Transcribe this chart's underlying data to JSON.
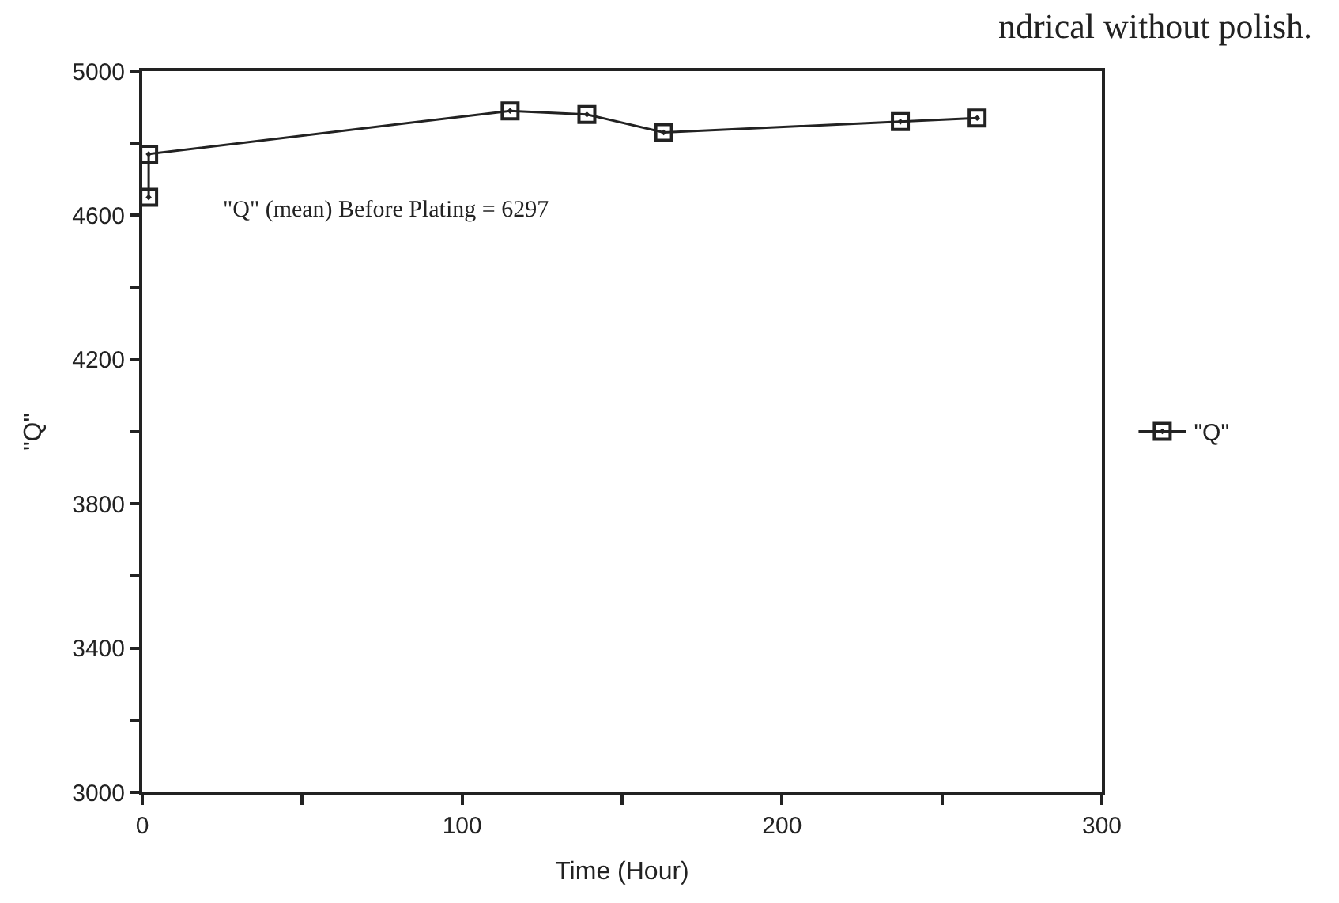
{
  "chart_data": {
    "type": "line",
    "title": "ndrical without polish.",
    "xlabel": "Time (Hour)",
    "ylabel": "\"Q\"",
    "x": [
      2,
      2,
      115,
      139,
      163,
      237,
      261
    ],
    "series": [
      {
        "name": "\"Q\"",
        "color": "#222222",
        "values": [
          4650,
          4770,
          4890,
          4880,
          4830,
          4860,
          4870
        ]
      }
    ],
    "annotations": [
      "\"Q\" (mean) Before Plating = 6297"
    ],
    "xlim": [
      0,
      300
    ],
    "xticks": [
      0,
      {
        "value": 50,
        "label": null
      },
      100,
      {
        "value": 150,
        "label": null
      },
      200,
      {
        "value": 250,
        "label": null
      },
      300
    ],
    "ylim": [
      3000,
      5000
    ],
    "yticks": [
      3000,
      {
        "value": 3200,
        "label": null
      },
      3400,
      {
        "value": 3600,
        "label": null
      },
      3800,
      {
        "value": 4000,
        "label": null
      },
      4200,
      {
        "value": 4400,
        "label": null
      },
      4600,
      {
        "value": 4800,
        "label": null
      },
      5000
    ],
    "legend": "right",
    "marker": "square",
    "line_style": "solid"
  }
}
